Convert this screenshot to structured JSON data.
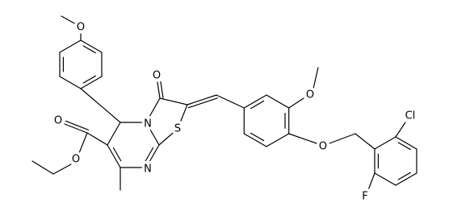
{
  "atoms": [
    {
      "label": "O"
    },
    {
      "label": "O"
    },
    {
      "label": "O"
    },
    {
      "label": "O"
    },
    {
      "label": "O"
    },
    {
      "label": "O"
    },
    {
      "label": "N"
    },
    {
      "label": "N"
    },
    {
      "label": "S"
    },
    {
      "label": "Cl"
    },
    {
      "label": "F"
    }
  ]
}
